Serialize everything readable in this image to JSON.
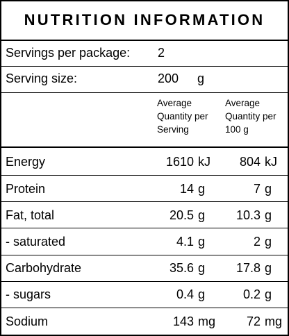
{
  "label": {
    "title": "NUTRITION INFORMATION",
    "servings_per_package": {
      "label": "Servings per package:",
      "value": "2"
    },
    "serving_size": {
      "label": "Serving size:",
      "value": "200",
      "unit": "g"
    },
    "column_headers": [
      {
        "line1": "Average",
        "line2": "Quantity per",
        "line3": "Serving"
      },
      {
        "line1": "Average",
        "line2": "Quantity per",
        "line3": "100 g"
      }
    ],
    "rows": [
      {
        "name": "Energy",
        "per_serving": "1610",
        "per_serving_unit": "kJ",
        "per_100g": "804",
        "per_100g_unit": "kJ"
      },
      {
        "name": "Protein",
        "per_serving": "14",
        "per_serving_unit": "g",
        "per_100g": "7",
        "per_100g_unit": "g"
      },
      {
        "name": "Fat, total",
        "per_serving": "20.5",
        "per_serving_unit": "g",
        "per_100g": "10.3",
        "per_100g_unit": "g"
      },
      {
        "name": "- saturated",
        "per_serving": "4.1",
        "per_serving_unit": "g",
        "per_100g": "2",
        "per_100g_unit": "g"
      },
      {
        "name": "Carbohydrate",
        "per_serving": "35.6",
        "per_serving_unit": "g",
        "per_100g": "17.8",
        "per_100g_unit": "g"
      },
      {
        "name": "- sugars",
        "per_serving": "0.4",
        "per_serving_unit": "g",
        "per_100g": "0.2",
        "per_100g_unit": "g"
      },
      {
        "name": "Sodium",
        "per_serving": "143",
        "per_serving_unit": "mg",
        "per_100g": "72",
        "per_100g_unit": "mg"
      }
    ]
  }
}
